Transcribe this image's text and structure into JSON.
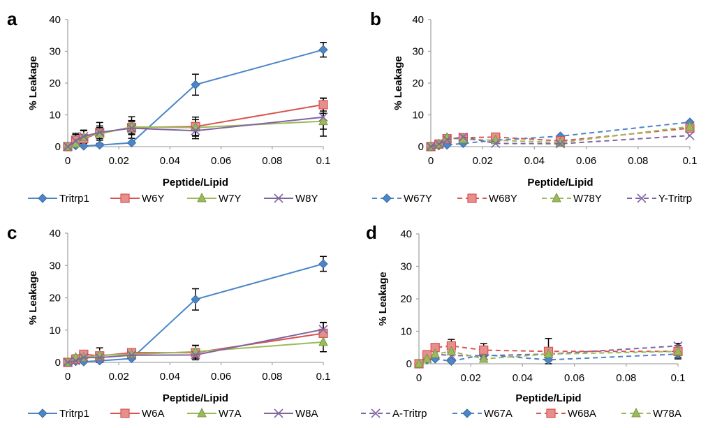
{
  "figure": {
    "description": "Four-panel line chart of % leakage versus peptide/lipid ratio"
  },
  "colors": {
    "blue": "#4a86c8",
    "red": "#d9534f",
    "green": "#9bbb59",
    "purple": "#8064a2",
    "axis": "#a6a6a6",
    "error_bar": "#000000"
  },
  "chart_data": [
    {
      "panel": "a",
      "type": "line",
      "xlabel": "Peptide/Lipid",
      "ylabel": "% Leakage",
      "xlim": [
        0,
        0.1
      ],
      "ylim": [
        0,
        40
      ],
      "xticks": [
        "0",
        "0.02",
        "0.04",
        "0.06",
        "0.08",
        "0.1"
      ],
      "yticks": [
        "0",
        "10",
        "20",
        "30",
        "40"
      ],
      "grid": false,
      "legend_position": "bottom",
      "line_style": "solid",
      "x": [
        0,
        0.003125,
        0.00625,
        0.0125,
        0.025,
        0.05,
        0.1
      ],
      "series": [
        {
          "name": "Tritrp1",
          "color": "blue",
          "marker": "diamond",
          "values": [
            0,
            0.3,
            0.2,
            0.5,
            1.2,
            19.5,
            30.5
          ],
          "errors": [
            0,
            0,
            0,
            0,
            0,
            3.3,
            2.3
          ]
        },
        {
          "name": "W6Y",
          "color": "red",
          "marker": "square",
          "values": [
            0,
            2.0,
            2.5,
            4.3,
            6.0,
            6.3,
            13.2
          ],
          "errors": [
            0,
            2.2,
            2.5,
            3.3,
            3.4,
            3.0,
            2.0
          ]
        },
        {
          "name": "W7Y",
          "color": "green",
          "marker": "triangle",
          "values": [
            0,
            1.0,
            3.0,
            4.0,
            6.2,
            6.0,
            8.0
          ],
          "errors": [
            0,
            1.5,
            2.0,
            2.0,
            2.0,
            2.5,
            2.5
          ]
        },
        {
          "name": "W8Y",
          "color": "purple",
          "marker": "x",
          "values": [
            0,
            1.8,
            3.2,
            4.5,
            5.8,
            5.0,
            9.3
          ],
          "errors": [
            0,
            2.0,
            2.0,
            2.0,
            2.0,
            2.5,
            6.0
          ]
        }
      ]
    },
    {
      "panel": "b",
      "type": "line",
      "xlabel": "Peptide/Lipid",
      "ylabel": "% Leakage",
      "xlim": [
        0,
        0.1
      ],
      "ylim": [
        0,
        40
      ],
      "xticks": [
        "0",
        "0.02",
        "0.04",
        "0.06",
        "0.08",
        "0.1"
      ],
      "yticks": [
        "0",
        "10",
        "20",
        "30",
        "40"
      ],
      "grid": false,
      "legend_position": "bottom",
      "line_style": "dashed",
      "x": [
        0,
        0.003125,
        0.00625,
        0.0125,
        0.025,
        0.05,
        0.1
      ],
      "series": [
        {
          "name": "W67Y",
          "color": "blue",
          "marker": "diamond",
          "values": [
            0,
            0.3,
            0.5,
            1.0,
            2.0,
            3.3,
            7.7
          ],
          "errors": [
            0,
            0,
            0,
            0,
            0,
            0,
            0
          ]
        },
        {
          "name": "W68Y",
          "color": "red",
          "marker": "square",
          "values": [
            0,
            0.8,
            2.5,
            2.8,
            3.0,
            1.8,
            5.8
          ],
          "errors": [
            0,
            0,
            0,
            0,
            0,
            0,
            0
          ]
        },
        {
          "name": "W78Y",
          "color": "green",
          "marker": "triangle",
          "values": [
            0,
            0.8,
            2.8,
            2.3,
            2.0,
            1.3,
            6.3
          ],
          "errors": [
            0,
            0,
            0,
            0,
            0,
            0,
            0
          ]
        },
        {
          "name": "Y-Tritrp",
          "color": "purple",
          "marker": "x",
          "values": [
            0,
            0.8,
            2.2,
            3.0,
            1.0,
            0.9,
            3.5
          ],
          "errors": [
            0,
            0,
            0,
            0,
            0,
            0,
            0
          ]
        }
      ]
    },
    {
      "panel": "c",
      "type": "line",
      "xlabel": "Peptide/Lipid",
      "ylabel": "% Leakage",
      "xlim": [
        0,
        0.1
      ],
      "ylim": [
        0,
        40
      ],
      "xticks": [
        "0",
        "0.02",
        "0.04",
        "0.06",
        "0.08",
        "0.1"
      ],
      "yticks": [
        "0",
        "10",
        "20",
        "30",
        "40"
      ],
      "grid": false,
      "legend_position": "bottom",
      "line_style": "solid",
      "x": [
        0,
        0.003125,
        0.00625,
        0.0125,
        0.025,
        0.05,
        0.1
      ],
      "series": [
        {
          "name": "Tritrp1",
          "color": "blue",
          "marker": "diamond",
          "values": [
            0,
            0.3,
            0.2,
            0.5,
            1.2,
            19.5,
            30.5
          ],
          "errors": [
            0,
            0,
            0,
            0,
            0,
            3.3,
            2.3
          ]
        },
        {
          "name": "W6A",
          "color": "red",
          "marker": "square",
          "values": [
            0,
            1.0,
            2.5,
            2.0,
            3.0,
            3.0,
            9.0
          ],
          "errors": [
            0,
            1.2,
            1.0,
            2.5,
            1.2,
            2.2,
            3.3
          ]
        },
        {
          "name": "W7A",
          "color": "green",
          "marker": "triangle",
          "values": [
            0,
            1.5,
            1.5,
            2.2,
            2.5,
            3.3,
            6.3
          ],
          "errors": [
            0,
            0.8,
            1.0,
            1.0,
            1.2,
            2.0,
            3.0
          ]
        },
        {
          "name": "W8A",
          "color": "purple",
          "marker": "x",
          "values": [
            0,
            0.5,
            1.5,
            1.5,
            2.2,
            2.3,
            10.2
          ],
          "errors": [
            0,
            0.8,
            1.0,
            1.0,
            1.2,
            1.5,
            2.2
          ]
        }
      ]
    },
    {
      "panel": "d",
      "type": "line",
      "xlabel": "Peptide/Lipid",
      "ylabel": "% Leakage",
      "xlim": [
        0,
        0.1
      ],
      "ylim": [
        0,
        40
      ],
      "xticks": [
        "0",
        "0.02",
        "0.04",
        "0.06",
        "0.08",
        "0.1"
      ],
      "yticks": [
        "0",
        "10",
        "20",
        "30",
        "40"
      ],
      "grid": false,
      "legend_position": "bottom",
      "line_style": "dashed",
      "x": [
        0,
        0.003125,
        0.00625,
        0.0125,
        0.025,
        0.05,
        0.1
      ],
      "series": [
        {
          "name": "A-Tritrp",
          "color": "purple",
          "marker": "x",
          "values": [
            0,
            1.5,
            3.0,
            2.5,
            2.5,
            3.0,
            5.5
          ],
          "errors": [
            0,
            0,
            0,
            0,
            0,
            0,
            0.8
          ]
        },
        {
          "name": "W67A",
          "color": "blue",
          "marker": "diamond",
          "values": [
            0,
            1.2,
            1.5,
            0.8,
            2.8,
            1.2,
            3.0
          ],
          "errors": [
            0,
            0,
            0,
            0,
            0,
            0,
            1.5
          ]
        },
        {
          "name": "W68A",
          "color": "red",
          "marker": "square",
          "values": [
            0,
            2.8,
            5.0,
            5.5,
            4.2,
            3.8,
            3.8
          ],
          "errors": [
            0,
            0,
            0.5,
            2.0,
            2.0,
            4.0,
            1.8
          ]
        },
        {
          "name": "W78A",
          "color": "green",
          "marker": "triangle",
          "values": [
            0,
            1.5,
            3.0,
            3.8,
            1.5,
            3.0,
            3.8
          ],
          "errors": [
            0,
            0,
            0,
            0,
            0,
            0,
            0
          ]
        }
      ]
    }
  ]
}
